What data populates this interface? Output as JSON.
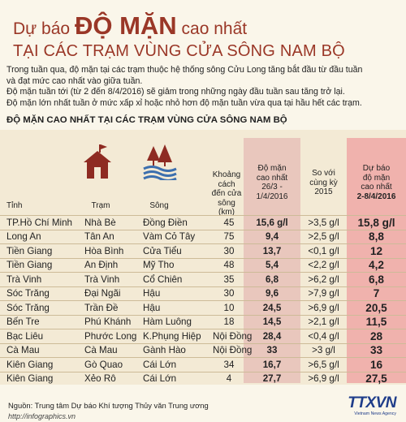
{
  "header": {
    "title_prefix": "Dự báo",
    "title_big": "ĐỘ MẶN",
    "title_suffix": "cao nhất",
    "title_line2": "TẠI CÁC TRẠM VÙNG CỬA SÔNG NAM BỘ",
    "intro": [
      "Trong tuần qua, độ mặn tại các trạm thuộc hệ thống sông Cửu Long tăng bắt đầu từ đầu tuần",
      "và đạt mức cao nhất vào giữa tuần.",
      "Độ mặn tuần tới (từ 2 đến 8/4/2016) sẽ giảm trong những ngày đầu tuần sau tăng trở lại.",
      "Độ mặn lớn nhất tuần ở mức xấp xỉ hoặc nhỏ hơn độ mặn tuần vừa qua tại hầu hết các trạm."
    ],
    "subtitle": "ĐỘ MẶN CAO NHẤT TẠI CÁC TRẠM VÙNG CỬA SÔNG NAM BỘ"
  },
  "colors": {
    "title": "#9a3727",
    "background": "#f3ead5",
    "observed_column": "#e9c7bd",
    "forecast_column": "#f0b2ad",
    "icon": "#8e2b22"
  },
  "icons": {
    "station": "house-icon",
    "river": "river-trees-icon"
  },
  "chart_data": {
    "type": "table",
    "title": "ĐỘ MẶN CAO NHẤT TẠI CÁC TRẠM VÙNG CỬA SÔNG NAM BỘ",
    "columns": {
      "tinh": "Tỉnh",
      "tram": "Trạm",
      "song": "Sông",
      "khoang_cach": [
        "Khoảng cách",
        "đến cửa sông",
        "(km)"
      ],
      "do_man": [
        "Độ mặn",
        "cao nhất",
        "26/3 -",
        "1/4/2016"
      ],
      "so_sanh": [
        "So với",
        "cùng kỳ",
        "2015"
      ],
      "du_bao": [
        "Dự báo",
        "độ mặn",
        "cao nhất",
        "2-8/4/2016"
      ]
    },
    "rows": [
      {
        "tinh": "TP.Hồ Chí Minh",
        "tram": "Nhà Bè",
        "song": "Đồng Điền",
        "kc": "45",
        "obs": "15,6 g/l",
        "cmp": ">3,5 g/l",
        "fc": "15,8 g/l"
      },
      {
        "tinh": "Long An",
        "tram": "Tân An",
        "song": "Vàm Cỏ Tây",
        "kc": "75",
        "obs": "9,4",
        "cmp": ">2,5 g/l",
        "fc": "8,8"
      },
      {
        "tinh": "Tiền Giang",
        "tram": "Hòa Bình",
        "song": "Cửa Tiểu",
        "kc": "30",
        "obs": "13,7",
        "cmp": "<0,1 g/l",
        "fc": "12"
      },
      {
        "tinh": "Tiền Giang",
        "tram": "An Định",
        "song": "Mỹ Tho",
        "kc": "48",
        "obs": "5,4",
        "cmp": "<2,2 g/l",
        "fc": "4,2"
      },
      {
        "tinh": "Trà Vinh",
        "tram": "Trà Vinh",
        "song": "Cổ Chiên",
        "kc": "35",
        "obs": "6,8",
        "cmp": ">6,2 g/l",
        "fc": "6,8"
      },
      {
        "tinh": "Sóc Trăng",
        "tram": "Đại Ngãi",
        "song": "Hậu",
        "kc": "30",
        "obs": "9,6",
        "cmp": ">7,9 g/l",
        "fc": "7"
      },
      {
        "tinh": "Sóc Trăng",
        "tram": "Trần Đề",
        "song": "Hậu",
        "kc": "10",
        "obs": "24,5",
        "cmp": ">6,9 g/l",
        "fc": "20,5"
      },
      {
        "tinh": "Bến Tre",
        "tram": "Phú Khánh",
        "song": "Hàm Luông",
        "kc": "18",
        "obs": "14,5",
        "cmp": ">2,1 g/l",
        "fc": "11,5"
      },
      {
        "tinh": "Bạc Liêu",
        "tram": "Phước Long",
        "song": "K.Phụng Hiệp",
        "kc": "Nội Đồng",
        "obs": "28,4",
        "cmp": "<0,4 g/l",
        "fc": "28"
      },
      {
        "tinh": "Cà Mau",
        "tram": "Cà Mau",
        "song": "Gành Hào",
        "kc": "Nội Đồng",
        "obs": "33",
        "cmp": ">3 g/l",
        "fc": "33"
      },
      {
        "tinh": "Kiên Giang",
        "tram": "Gò Quao",
        "song": "Cái Lớn",
        "kc": "34",
        "obs": "16,7",
        "cmp": ">6,5 g/l",
        "fc": "16"
      },
      {
        "tinh": "Kiên Giang",
        "tram": "Xẻo Rô",
        "song": "Cái Lớn",
        "kc": "4",
        "obs": "27,7",
        "cmp": ">6,9 g/l",
        "fc": "27,5"
      }
    ]
  },
  "footer": {
    "source": "Nguồn: Trung tâm Dự báo Khí tượng Thủy văn Trung ương",
    "website": "http://infographics.vn",
    "logo": "TTXVN",
    "logo_sub": "Vietnam News Agency"
  }
}
